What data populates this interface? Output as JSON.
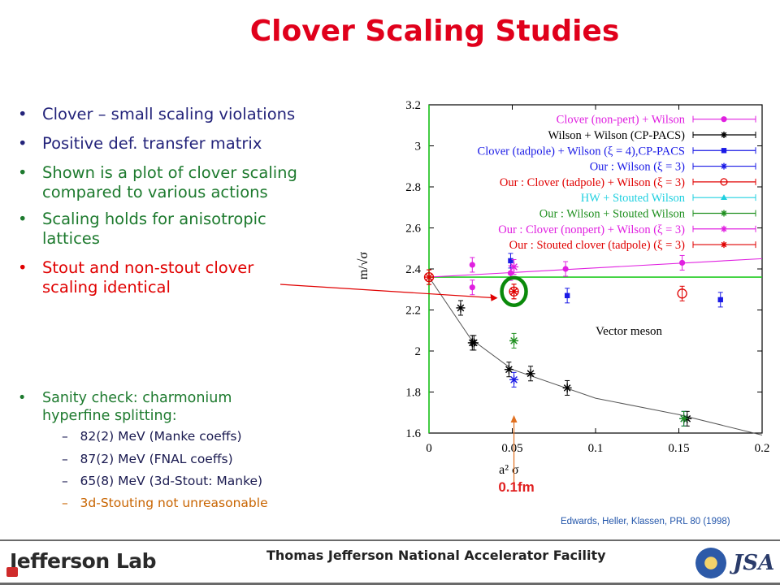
{
  "slide": {
    "title": "Clover Scaling Studies",
    "bullets": [
      {
        "text": "Clover – small scaling violations",
        "color": "#23237a"
      },
      {
        "text": "Positive def. transfer matrix",
        "color": "#23237a"
      },
      {
        "text": "Shown is a plot of clover scaling",
        "line2": "compared to various actions",
        "color": "#1d7a2e"
      },
      {
        "text": "Scaling holds for anisotropic",
        "line2": "lattices",
        "color": "#1d7a2e"
      },
      {
        "text": "Stout and non-stout clover",
        "line2": "scaling identical",
        "color": "#e00000"
      }
    ],
    "sanity": {
      "text": "Sanity check: charmonium",
      "line2": "hyperfine splitting:",
      "color": "#1d7a2e",
      "items": [
        {
          "text": "82(2) MeV (Manke coeffs)",
          "color": "#1a1a50"
        },
        {
          "text": "87(2) MeV (FNAL coeffs)",
          "color": "#1a1a50"
        },
        {
          "text": "65(8) MeV (3d-Stout: Manke)",
          "color": "#1a1a50"
        },
        {
          "text": "3d-Stouting not unreasonable",
          "color": "#c86400"
        }
      ]
    },
    "annotation_label": "0.1fm",
    "citation": "Edwards, Heller, Klassen, PRL 80 (1998)",
    "footer": {
      "lab": "Jefferson Lab",
      "facility": "Thomas Jefferson National Accelerator Facility",
      "jsa": "JSA"
    }
  },
  "chart_data": {
    "type": "scatter",
    "title": "",
    "xlabel": "a² σ",
    "ylabel": "m/√σ",
    "xlim": [
      0,
      0.2
    ],
    "ylim": [
      1.6,
      3.2
    ],
    "xticks": [
      "0",
      "0.05",
      "0.1",
      "0.15",
      "0.2"
    ],
    "yticks": [
      "1.6",
      "1.8",
      "2",
      "2.2",
      "2.4",
      "2.6",
      "2.8",
      "3",
      "3.2"
    ],
    "annotation": "Vector meson",
    "series": [
      {
        "name": "Clover (non-pert) + Wilson",
        "color": "#e020e0",
        "marker": "dot",
        "points": [
          [
            0.026,
            2.42
          ],
          [
            0.026,
            2.31
          ],
          [
            0.049,
            2.38
          ],
          [
            0.082,
            2.4
          ],
          [
            0.152,
            2.43
          ]
        ],
        "fit_line": [
          [
            0,
            2.36
          ],
          [
            0.2,
            2.45
          ]
        ]
      },
      {
        "name": "Wilson + Wilson (CP-PACS)",
        "color": "#000000",
        "marker": "star",
        "points": [
          [
            0.019,
            2.21
          ],
          [
            0.026,
            2.04
          ],
          [
            0.027,
            2.04
          ],
          [
            0.048,
            1.91
          ],
          [
            0.061,
            1.89
          ],
          [
            0.083,
            1.82
          ],
          [
            0.155,
            1.67
          ]
        ],
        "fit_curve": [
          [
            0,
            2.36
          ],
          [
            0.025,
            2.06
          ],
          [
            0.05,
            1.91
          ],
          [
            0.1,
            1.77
          ],
          [
            0.15,
            1.69
          ],
          [
            0.2,
            1.59
          ]
        ]
      },
      {
        "name": "Clover (tadpole) + Wilson (ξ = 4),CP-PACS",
        "color": "#1a1ae6",
        "marker": "square",
        "points": [
          [
            0.049,
            2.44
          ],
          [
            0.083,
            2.27
          ],
          [
            0.175,
            2.25
          ]
        ]
      },
      {
        "name": "Our : Wilson (ξ = 3)",
        "color": "#1a1ae6",
        "marker": "star",
        "points": [
          [
            0.051,
            1.86
          ],
          [
            0.153,
            1.67
          ]
        ]
      },
      {
        "name": "Our : Clover (tadpole) + Wilson (ξ = 3)",
        "color": "#e00000",
        "marker": "circle",
        "points": [
          [
            0,
            2.36
          ],
          [
            0.051,
            2.29
          ],
          [
            0.152,
            2.28
          ]
        ]
      },
      {
        "name": "HW + Stouted Wilson",
        "color": "#20d0e0",
        "marker": "triangle",
        "points": []
      },
      {
        "name": "Our : Wilson + Stouted Wilson",
        "color": "#209020",
        "marker": "star",
        "points": [
          [
            0.051,
            2.05
          ],
          [
            0.153,
            1.67
          ]
        ]
      },
      {
        "name": "Our : Clover (nonpert) + Wilson (ξ = 3)",
        "color": "#e020e0",
        "marker": "star",
        "points": [
          [
            0.051,
            2.41
          ]
        ]
      },
      {
        "name": "Our : Stouted clover (tadpole) (ξ = 3)",
        "color": "#e00000",
        "marker": "star",
        "points": [
          [
            0,
            2.36
          ],
          [
            0.051,
            2.29
          ]
        ]
      }
    ],
    "reference_lines": {
      "horizontal_y": 2.36,
      "vertical_x": 0,
      "color": "#22cc22"
    },
    "highlight_point": [
      0.051,
      2.29
    ],
    "arrow_x": 0.051
  }
}
